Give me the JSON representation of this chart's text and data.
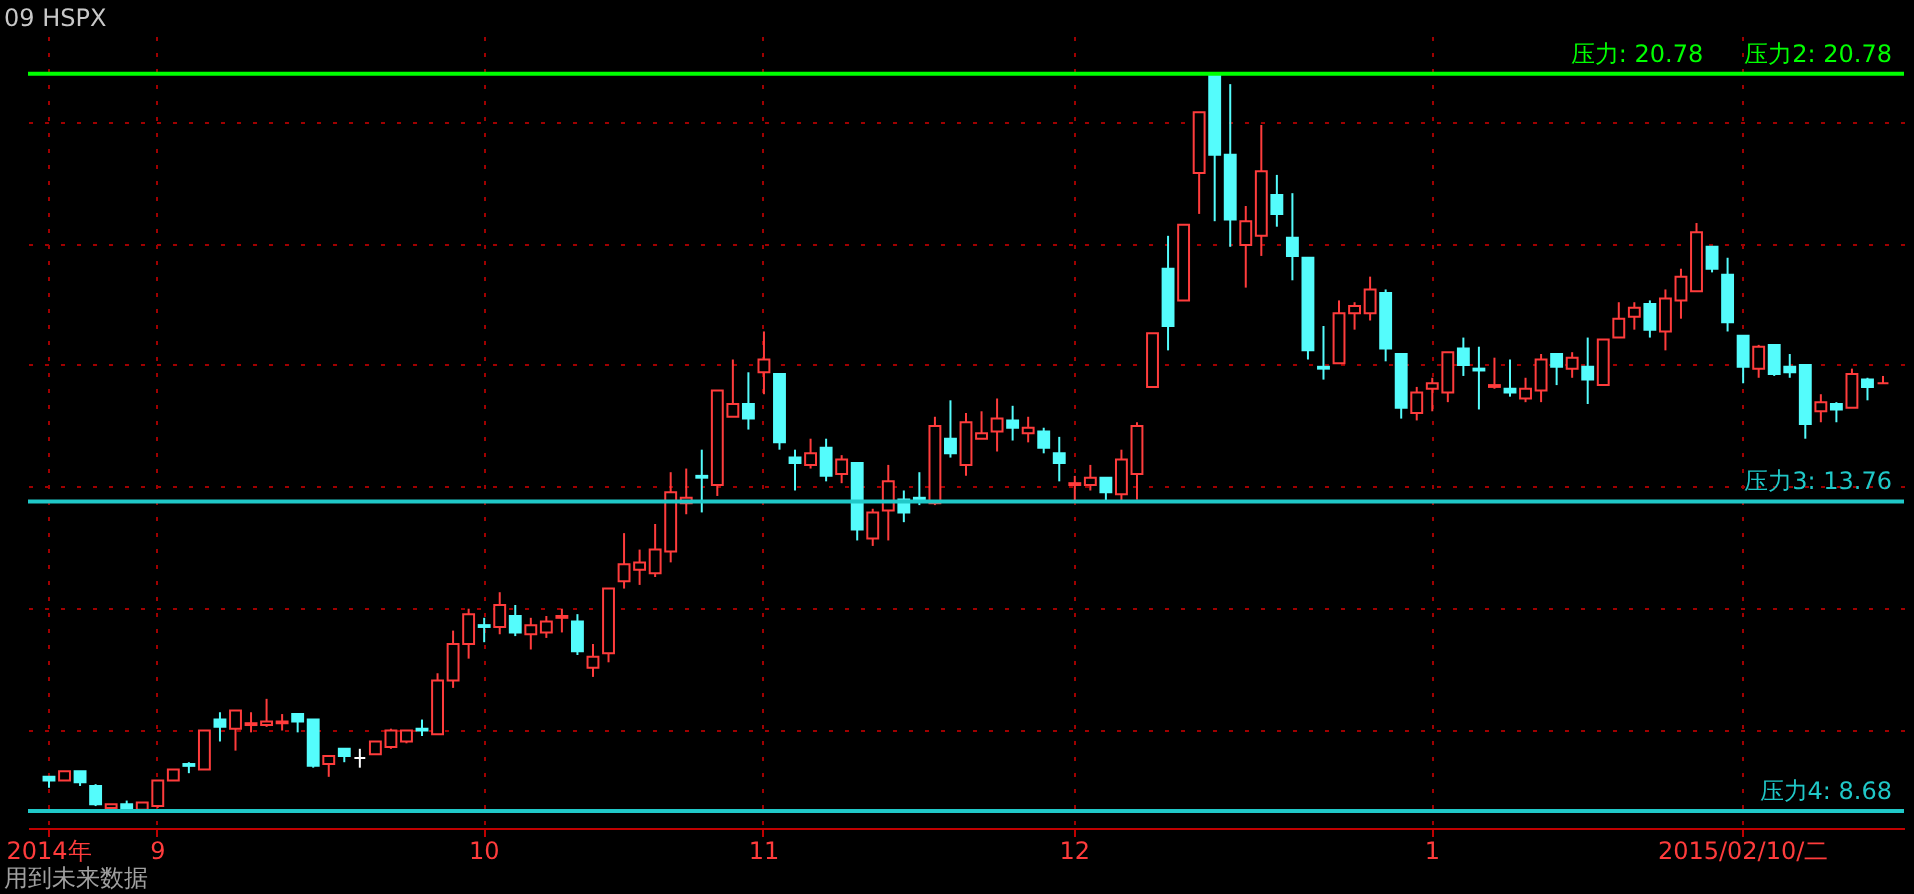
{
  "chart_data": {
    "type": "candlestick",
    "title": "09 HSPX",
    "annotations": [
      "用到未来数据",
      {
        "text": "压力2: 20.78",
        "y": 20.78
      }
    ],
    "categories": [
      "2014年",
      null,
      null,
      null,
      null,
      null,
      null,
      "9",
      null,
      null,
      null,
      null,
      null,
      null,
      null,
      null,
      null,
      null,
      null,
      null,
      null,
      null,
      null,
      null,
      null,
      null,
      null,
      null,
      "10",
      null,
      null,
      null,
      null,
      null,
      null,
      null,
      null,
      null,
      null,
      null,
      null,
      null,
      null,
      null,
      null,
      null,
      "11",
      null,
      null,
      null,
      null,
      null,
      null,
      null,
      null,
      null,
      null,
      null,
      null,
      null,
      null,
      null,
      null,
      null,
      null,
      null,
      "12",
      null,
      null,
      null,
      null,
      null,
      null,
      null,
      null,
      null,
      null,
      null,
      null,
      null,
      null,
      null,
      null,
      null,
      null,
      null,
      null,
      null,
      null,
      "1",
      null,
      null,
      null,
      null,
      null,
      null,
      null,
      null,
      null,
      null,
      null,
      null,
      null,
      null,
      null,
      null,
      null,
      null,
      null,
      "2015/02/10/二",
      null,
      null,
      null,
      null,
      null,
      null,
      null,
      null,
      null
    ],
    "ohlc": [
      [
        9.24,
        9.24,
        9.06,
        9.18
      ],
      [
        9.18,
        9.33,
        9.18,
        9.33
      ],
      [
        9.33,
        9.33,
        9.09,
        9.15
      ],
      [
        9.09,
        9.12,
        8.76,
        8.79
      ],
      [
        8.73,
        8.79,
        8.73,
        8.79
      ],
      [
        8.79,
        8.85,
        8.68,
        8.7
      ],
      [
        8.7,
        8.82,
        8.68,
        8.82
      ],
      [
        8.76,
        9.18,
        8.73,
        9.18
      ],
      [
        9.18,
        9.36,
        9.18,
        9.36
      ],
      [
        9.45,
        9.48,
        9.3,
        9.42
      ],
      [
        9.36,
        10.0,
        9.36,
        10.0
      ],
      [
        10.18,
        10.3,
        9.82,
        10.06
      ],
      [
        10.03,
        10.33,
        9.67,
        10.33
      ],
      [
        10.09,
        10.3,
        9.97,
        10.12
      ],
      [
        10.09,
        10.52,
        10.06,
        10.15
      ],
      [
        10.12,
        10.27,
        10.0,
        10.15
      ],
      [
        10.27,
        10.27,
        9.97,
        10.15
      ],
      [
        10.18,
        10.18,
        9.39,
        9.42
      ],
      [
        9.45,
        9.58,
        9.24,
        9.58
      ],
      [
        9.7,
        9.7,
        9.48,
        9.58
      ],
      [
        9.55,
        9.7,
        9.39,
        9.55
      ],
      [
        9.61,
        9.82,
        9.61,
        9.82
      ],
      [
        9.73,
        10.03,
        9.7,
        10.0
      ],
      [
        9.82,
        10.0,
        9.79,
        10.0
      ],
      [
        10.03,
        10.18,
        9.91,
        10.0
      ],
      [
        9.94,
        10.94,
        9.94,
        10.82
      ],
      [
        10.82,
        11.64,
        10.7,
        11.42
      ],
      [
        11.42,
        12.0,
        11.18,
        11.91
      ],
      [
        11.73,
        11.85,
        11.45,
        11.7
      ],
      [
        11.7,
        12.27,
        11.58,
        12.06
      ],
      [
        11.88,
        12.06,
        11.55,
        11.61
      ],
      [
        11.58,
        11.85,
        11.33,
        11.73
      ],
      [
        11.61,
        11.88,
        11.52,
        11.79
      ],
      [
        11.85,
        12.0,
        11.61,
        11.88
      ],
      [
        11.79,
        11.91,
        11.24,
        11.3
      ],
      [
        11.03,
        11.42,
        10.88,
        11.21
      ],
      [
        11.27,
        12.33,
        11.12,
        12.33
      ],
      [
        12.45,
        13.24,
        12.33,
        12.73
      ],
      [
        12.64,
        12.97,
        12.39,
        12.76
      ],
      [
        12.58,
        13.39,
        12.52,
        12.97
      ],
      [
        12.94,
        14.24,
        12.76,
        13.91
      ],
      [
        13.73,
        14.3,
        13.55,
        13.82
      ],
      [
        14.18,
        14.61,
        13.58,
        14.15
      ],
      [
        14.03,
        15.58,
        13.85,
        15.58
      ],
      [
        15.15,
        16.09,
        15.15,
        15.36
      ],
      [
        15.36,
        15.88,
        14.94,
        15.12
      ],
      [
        15.88,
        16.55,
        15.52,
        16.09
      ],
      [
        15.85,
        15.85,
        14.61,
        14.73
      ],
      [
        14.48,
        14.61,
        13.94,
        14.39
      ],
      [
        14.36,
        14.79,
        14.3,
        14.55
      ],
      [
        14.64,
        14.79,
        14.09,
        14.18
      ],
      [
        14.21,
        14.52,
        14.06,
        14.45
      ],
      [
        14.39,
        14.39,
        13.12,
        13.3
      ],
      [
        13.15,
        13.64,
        13.03,
        13.58
      ],
      [
        13.61,
        14.36,
        13.12,
        14.09
      ],
      [
        13.79,
        13.94,
        13.42,
        13.58
      ],
      [
        13.82,
        14.24,
        13.7,
        13.79
      ],
      [
        13.73,
        15.15,
        13.7,
        15.0
      ],
      [
        14.79,
        15.42,
        14.48,
        14.55
      ],
      [
        14.36,
        15.21,
        14.18,
        15.06
      ],
      [
        14.79,
        15.24,
        14.79,
        14.88
      ],
      [
        14.91,
        15.45,
        14.58,
        15.12
      ],
      [
        15.09,
        15.33,
        14.76,
        14.97
      ],
      [
        14.88,
        15.15,
        14.73,
        14.97
      ],
      [
        14.91,
        14.97,
        14.55,
        14.64
      ],
      [
        14.55,
        14.82,
        14.09,
        14.39
      ],
      [
        14.03,
        14.18,
        13.76,
        14.06
      ],
      [
        14.03,
        14.36,
        13.94,
        14.15
      ],
      [
        14.15,
        14.15,
        13.76,
        13.91
      ],
      [
        13.88,
        14.61,
        13.76,
        14.45
      ],
      [
        14.21,
        15.06,
        13.79,
        15.0
      ],
      [
        15.64,
        16.52,
        15.64,
        16.52
      ],
      [
        17.58,
        18.12,
        16.24,
        16.64
      ],
      [
        17.06,
        18.3,
        17.06,
        18.3
      ],
      [
        19.15,
        20.15,
        18.48,
        20.15
      ],
      [
        20.78,
        20.78,
        18.36,
        19.45
      ],
      [
        19.45,
        20.61,
        17.94,
        18.39
      ],
      [
        17.97,
        18.61,
        17.27,
        18.36
      ],
      [
        18.12,
        19.94,
        17.79,
        19.18
      ],
      [
        18.79,
        19.12,
        18.27,
        18.48
      ],
      [
        18.09,
        18.82,
        17.39,
        17.79
      ],
      [
        17.76,
        17.76,
        16.09,
        16.24
      ],
      [
        15.97,
        16.64,
        15.76,
        15.94
      ],
      [
        16.03,
        17.06,
        16.03,
        16.85
      ],
      [
        16.85,
        17.03,
        16.58,
        16.97
      ],
      [
        16.85,
        17.45,
        16.73,
        17.24
      ],
      [
        17.18,
        17.24,
        16.06,
        16.27
      ],
      [
        16.18,
        16.18,
        15.12,
        15.3
      ],
      [
        15.21,
        15.64,
        15.09,
        15.55
      ],
      [
        15.61,
        15.79,
        15.24,
        15.7
      ],
      [
        15.55,
        16.21,
        15.39,
        16.21
      ],
      [
        16.27,
        16.45,
        15.82,
        16.0
      ],
      [
        15.94,
        16.3,
        15.27,
        15.91
      ],
      [
        15.64,
        16.12,
        15.61,
        15.67
      ],
      [
        15.61,
        16.09,
        15.48,
        15.55
      ],
      [
        15.45,
        15.79,
        15.39,
        15.61
      ],
      [
        15.58,
        16.18,
        15.39,
        16.09
      ],
      [
        16.18,
        16.18,
        15.67,
        15.97
      ],
      [
        15.94,
        16.21,
        15.79,
        16.12
      ],
      [
        15.97,
        16.45,
        15.36,
        15.76
      ],
      [
        15.67,
        16.42,
        15.67,
        16.42
      ],
      [
        16.45,
        17.03,
        16.45,
        16.76
      ],
      [
        16.79,
        17.03,
        16.58,
        16.94
      ],
      [
        17.0,
        17.06,
        16.45,
        16.58
      ],
      [
        16.55,
        17.24,
        16.24,
        17.09
      ],
      [
        17.06,
        17.58,
        16.76,
        17.45
      ],
      [
        17.21,
        18.33,
        17.21,
        18.18
      ],
      [
        17.94,
        17.94,
        17.52,
        17.58
      ],
      [
        17.48,
        17.76,
        16.55,
        16.7
      ],
      [
        16.48,
        16.48,
        15.7,
        15.97
      ],
      [
        15.94,
        16.33,
        15.79,
        16.3
      ],
      [
        16.33,
        16.33,
        15.82,
        15.85
      ],
      [
        15.97,
        16.18,
        15.79,
        15.88
      ],
      [
        16.0,
        16.0,
        14.79,
        15.03
      ],
      [
        15.24,
        15.52,
        15.06,
        15.39
      ],
      [
        15.36,
        15.39,
        15.06,
        15.27
      ],
      [
        15.3,
        15.94,
        15.3,
        15.85
      ],
      [
        15.76,
        15.79,
        15.42,
        15.64
      ],
      [
        15.7,
        15.82,
        15.7,
        15.7
      ]
    ],
    "colors": [
      "#54fcfc",
      "#ff3c3c",
      "#54fcfc",
      "#54fcfc",
      "#ff3c3c",
      "#54fcfc",
      "#ff3c3c",
      "#ff3c3c",
      "#ff3c3c",
      "#54fcfc",
      "#ff3c3c",
      "#54fcfc",
      "#ff3c3c",
      "#ff3c3c",
      "#ff3c3c",
      "#ff3c3c",
      "#54fcfc",
      "#54fcfc",
      "#ff3c3c",
      "#54fcfc",
      "#ffffff",
      "#ff3c3c",
      "#ff3c3c",
      "#ff3c3c",
      "#54fcfc",
      "#ff3c3c",
      "#ff3c3c",
      "#ff3c3c",
      "#54fcfc",
      "#ff3c3c",
      "#54fcfc",
      "#ff3c3c",
      "#ff3c3c",
      "#ff3c3c",
      "#54fcfc",
      "#ff3c3c",
      "#ff3c3c",
      "#ff3c3c",
      "#ff3c3c",
      "#ff3c3c",
      "#ff3c3c",
      "#ff3c3c",
      "#54fcfc",
      "#ff3c3c",
      "#ff3c3c",
      "#54fcfc",
      "#ff3c3c",
      "#54fcfc",
      "#54fcfc",
      "#ff3c3c",
      "#54fcfc",
      "#ff3c3c",
      "#54fcfc",
      "#ff3c3c",
      "#ff3c3c",
      "#54fcfc",
      "#54fcfc",
      "#ff3c3c",
      "#54fcfc",
      "#ff3c3c",
      "#ff3c3c",
      "#ff3c3c",
      "#54fcfc",
      "#ff3c3c",
      "#54fcfc",
      "#54fcfc",
      "#ff3c3c",
      "#ff3c3c",
      "#54fcfc",
      "#ff3c3c",
      "#ff3c3c",
      "#ff3c3c",
      "#54fcfc",
      "#ff3c3c",
      "#ff3c3c",
      "#54fcfc",
      "#54fcfc",
      "#ff3c3c",
      "#ff3c3c",
      "#54fcfc",
      "#54fcfc",
      "#54fcfc",
      "#54fcfc",
      "#ff3c3c",
      "#ff3c3c",
      "#ff3c3c",
      "#54fcfc",
      "#54fcfc",
      "#ff3c3c",
      "#ff3c3c",
      "#ff3c3c",
      "#54fcfc",
      "#54fcfc",
      "#ff3c3c",
      "#54fcfc",
      "#ff3c3c",
      "#ff3c3c",
      "#54fcfc",
      "#ff3c3c",
      "#54fcfc",
      "#ff3c3c",
      "#ff3c3c",
      "#ff3c3c",
      "#54fcfc",
      "#ff3c3c",
      "#ff3c3c",
      "#ff3c3c",
      "#54fcfc",
      "#54fcfc",
      "#54fcfc",
      "#ff3c3c",
      "#54fcfc",
      "#54fcfc",
      "#54fcfc",
      "#ff3c3c",
      "#54fcfc",
      "#ff3c3c",
      "#54fcfc",
      "#ff3c3c"
    ],
    "ref_lines": [
      {
        "axis": "y",
        "value": 20.78,
        "label": "压力: 20.78",
        "color": "#00ff00"
      },
      {
        "axis": "y",
        "value": 13.76,
        "label": "压力3: 13.76",
        "color": "#20c8c8"
      },
      {
        "axis": "y",
        "value": 8.68,
        "label": "压力4: 8.68",
        "color": "#20c8c8"
      }
    ],
    "ylim": [
      8.4,
      21.4
    ],
    "yticks": [
      {
        "value": 10,
        "label": null
      },
      {
        "value": 12,
        "label": null
      },
      {
        "value": 14,
        "label": null
      },
      {
        "value": 16,
        "label": null
      },
      {
        "value": 18,
        "label": null
      },
      {
        "value": 20,
        "label": null
      }
    ],
    "grid": true,
    "tick_labels": "x"
  }
}
